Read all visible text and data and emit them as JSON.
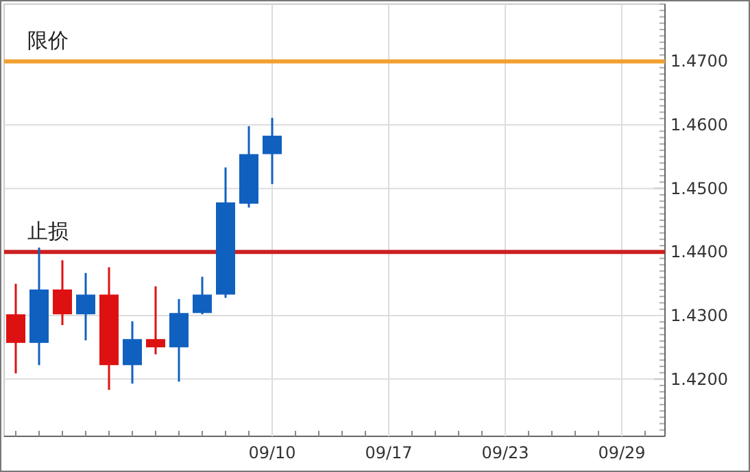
{
  "chart_data": {
    "type": "candlestick",
    "categories": [
      null,
      null,
      null,
      null,
      null,
      null,
      null,
      null,
      null,
      null,
      null,
      "09/10",
      null,
      null,
      null,
      null,
      "09/17",
      null,
      null,
      null,
      null,
      "09/23",
      null,
      null,
      null,
      null,
      "09/29",
      null
    ],
    "ohlc": [
      [
        1.4302,
        1.435,
        1.4209,
        1.4257
      ],
      [
        1.4257,
        1.4407,
        1.4222,
        1.4341
      ],
      [
        1.4341,
        1.4387,
        1.4285,
        1.4302
      ],
      [
        1.4302,
        1.4367,
        1.4261,
        1.4333
      ],
      [
        1.4333,
        1.4376,
        1.4183,
        1.4222
      ],
      [
        1.4222,
        1.4291,
        1.4193,
        1.4263
      ],
      [
        1.4263,
        1.4346,
        1.4239,
        1.425
      ],
      [
        1.425,
        1.4326,
        1.4196,
        1.4304
      ],
      [
        1.4304,
        1.4361,
        1.4302,
        1.4333
      ],
      [
        1.4333,
        1.4533,
        1.4328,
        1.4478
      ],
      [
        1.4476,
        1.4598,
        1.447,
        1.4554
      ],
      [
        1.4554,
        1.4611,
        1.4507,
        1.4583
      ],
      null,
      null,
      null,
      null,
      null,
      null,
      null,
      null,
      null,
      null,
      null,
      null,
      null,
      null,
      null,
      null
    ],
    "colors": [
      "#dd1111",
      "#1060c0",
      "#dd1111",
      "#1060c0",
      "#dd1111",
      "#1060c0",
      "#dd1111",
      "#1060c0",
      "#1060c0",
      "#1060c0",
      "#1060c0",
      "#1060c0",
      null,
      null,
      null,
      null,
      null,
      null,
      null,
      null,
      null,
      null,
      null,
      null,
      null,
      null,
      null,
      null
    ],
    "ylim": [
      1.411,
      1.479
    ],
    "yticks": [
      {
        "value": 1.42,
        "label": "1.4200"
      },
      {
        "value": 1.43,
        "label": "1.4300"
      },
      {
        "value": 1.44,
        "label": "1.4400"
      },
      {
        "value": 1.45,
        "label": "1.4500"
      },
      {
        "value": 1.46,
        "label": "1.4600"
      },
      {
        "value": 1.47,
        "label": "1.4700"
      }
    ],
    "ref_lines": [
      {
        "axis": "y",
        "value": 1.47,
        "label": "限价",
        "color": "#f0a030"
      },
      {
        "axis": "y",
        "value": 1.44,
        "label": "止损",
        "color": "#cc2020"
      }
    ],
    "grid": true
  }
}
